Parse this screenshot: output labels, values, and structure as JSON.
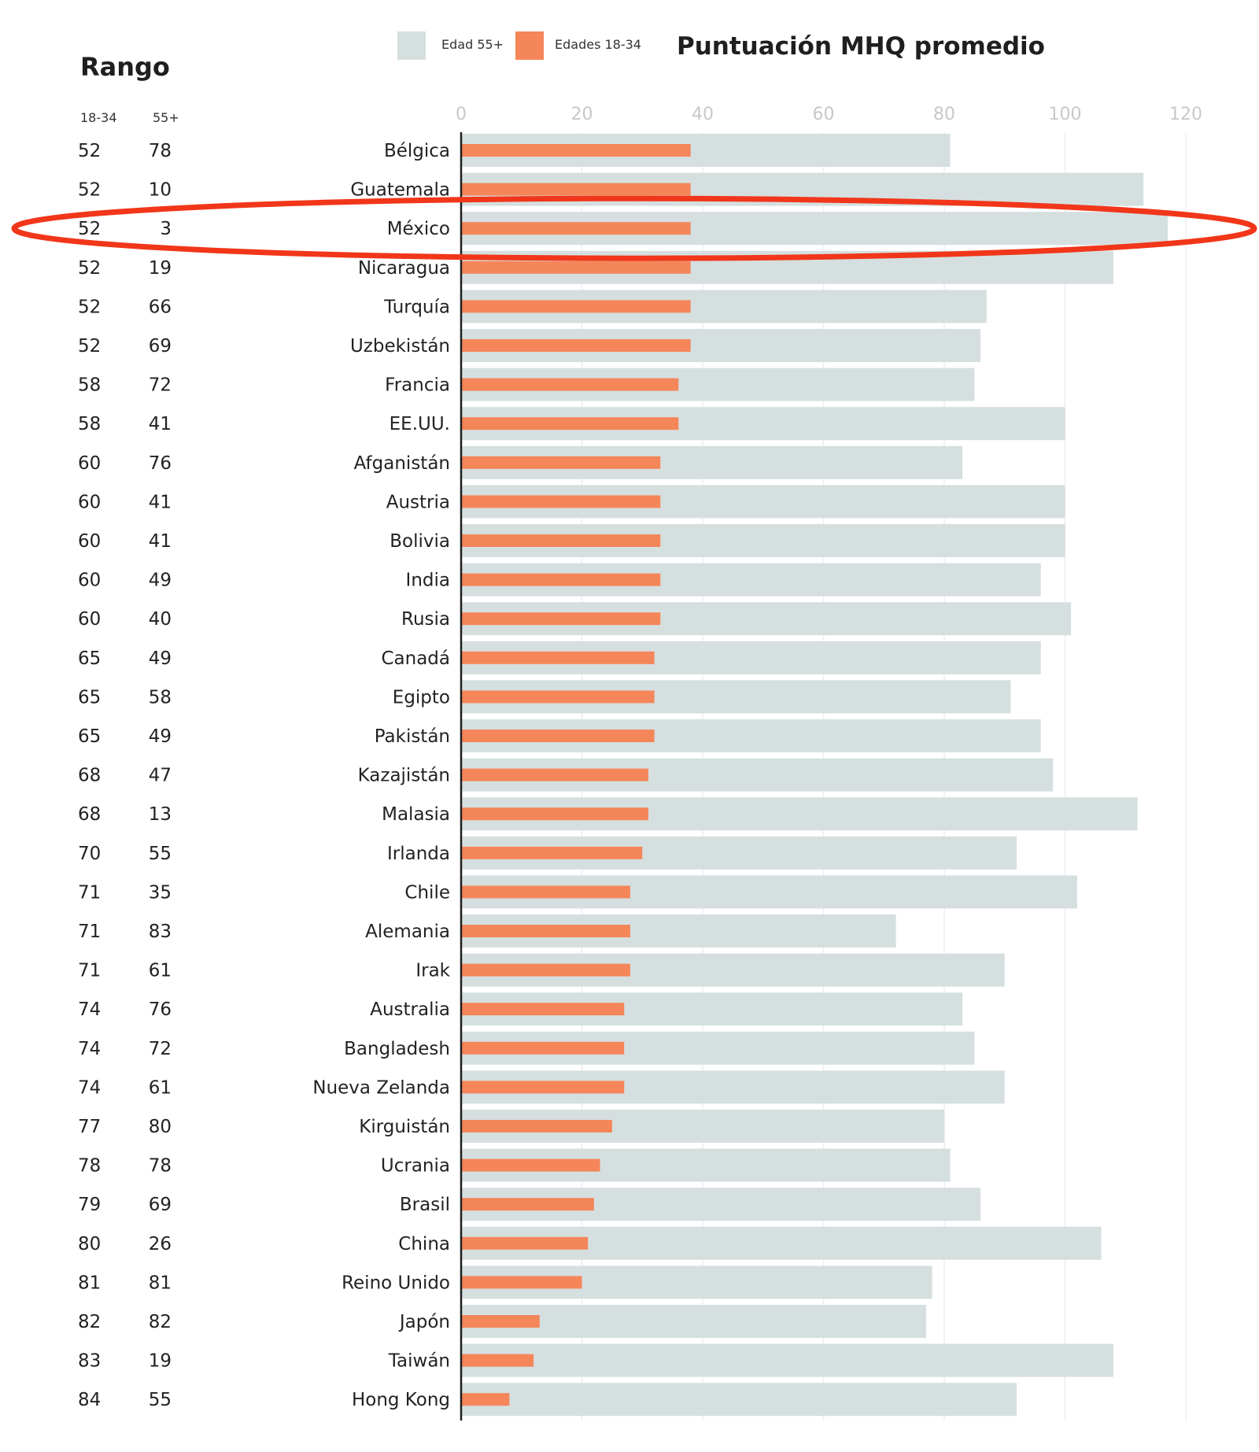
{
  "title": "Puntuación MHQ promedio",
  "rank_header": "Rango",
  "rank_columns": [
    "18-34",
    "55+"
  ],
  "legend": [
    {
      "label": "Edad 55+",
      "color": "#d6dfdf"
    },
    {
      "label": "Edades 18-34",
      "color": "#f4865a"
    }
  ],
  "colors": {
    "older": "#d6dfdf",
    "younger": "#f4865a",
    "highlight": "#f1361a",
    "axis": "#1f1f1f",
    "grid": "#eeeeee",
    "tick": "#c8c8c8"
  },
  "chart_data": {
    "type": "bar",
    "orientation": "horizontal",
    "title": "Puntuación MHQ promedio",
    "xlim": [
      0,
      120
    ],
    "xticks": [
      "0",
      "20",
      "40",
      "60",
      "80",
      "100",
      "120"
    ],
    "legend_position": "top",
    "grid": true,
    "categories": [
      "Bélgica",
      "Guatemala",
      "México",
      "Nicaragua",
      "Turquía",
      "Uzbekistán",
      "Francia",
      "EE.UU.",
      "Afganistán",
      "Austria",
      "Bolivia",
      "India",
      "Rusia",
      "Canadá",
      "Egipto",
      "Pakistán",
      "Kazajistán",
      "Malasia",
      "Irlanda",
      "Chile",
      "Alemania",
      "Irak",
      "Australia",
      "Bangladesh",
      "Nueva Zelanda",
      "Kirguistán",
      "Ucrania",
      "Brasil",
      "China",
      "Reino Unido",
      "Japón",
      "Taiwán",
      "Hong Kong"
    ],
    "series": [
      {
        "name": "Edad 55+",
        "values": [
          81,
          113,
          117,
          108,
          87,
          86,
          85,
          100,
          83,
          100,
          100,
          96,
          101,
          96,
          91,
          96,
          98,
          112,
          92,
          102,
          72,
          90,
          83,
          85,
          90,
          80,
          81,
          86,
          106,
          78,
          77,
          108,
          92
        ]
      },
      {
        "name": "Edades 18-34",
        "values": [
          38,
          38,
          38,
          38,
          38,
          38,
          36,
          36,
          33,
          33,
          33,
          33,
          33,
          32,
          32,
          32,
          31,
          31,
          30,
          28,
          28,
          28,
          27,
          27,
          27,
          25,
          23,
          22,
          21,
          20,
          13,
          12,
          8
        ]
      }
    ],
    "rank_18_34": [
      "52",
      "52",
      "52",
      "52",
      "52",
      "52",
      "58",
      "58",
      "60",
      "60",
      "60",
      "60",
      "60",
      "65",
      "65",
      "65",
      "68",
      "68",
      "70",
      "71",
      "71",
      "71",
      "74",
      "74",
      "74",
      "77",
      "78",
      "79",
      "80",
      "81",
      "82",
      "83",
      "84"
    ],
    "rank_55_plus": [
      "78",
      "10",
      "3",
      "19",
      "66",
      "69",
      "72",
      "41",
      "76",
      "41",
      "41",
      "49",
      "40",
      "49",
      "58",
      "49",
      "47",
      "13",
      "55",
      "35",
      "83",
      "61",
      "76",
      "72",
      "61",
      "80",
      "78",
      "69",
      "26",
      "81",
      "82",
      "19",
      "55"
    ],
    "highlighted_category": "México"
  }
}
